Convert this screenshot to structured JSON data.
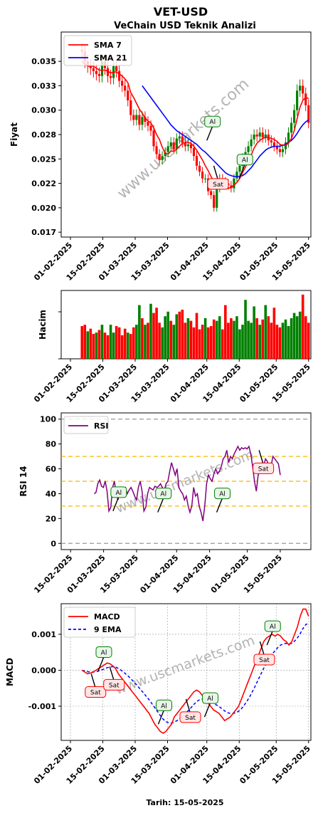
{
  "header": {
    "ticker": "VET-USD",
    "subtitle": "VeChain USD Teknik Analizi"
  },
  "watermark": "www.uscmarkets.com",
  "footer": {
    "date_label": "Tarih: 15-05-2025"
  },
  "colors": {
    "up": "#008000",
    "down": "#ff0000",
    "sma7": "#ff0000",
    "sma21": "#0000ff",
    "rsi": "#800080",
    "macd": "#ff0000",
    "ema": "#0000ff",
    "buy": "#008000",
    "sell": "#ff0000"
  },
  "chart_data": [
    {
      "id": "price",
      "type": "line",
      "ylabel": "Fiyat",
      "ylim": [
        0.0165,
        0.0375
      ],
      "yticks": [
        "0.017",
        "0.020",
        "0.022",
        "0.025",
        "0.028",
        "0.030",
        "0.033",
        "0.035"
      ],
      "ytick_values": [
        0.017,
        0.0195,
        0.022,
        0.0245,
        0.027,
        0.0295,
        0.032,
        0.0345
      ],
      "xlim": [
        -4,
        104
      ],
      "xticks": [
        "01-02-2025",
        "15-02-2025",
        "01-03-2025",
        "15-03-2025",
        "01-04-2025",
        "15-04-2025",
        "01-05-2025",
        "15-05-2025"
      ],
      "xtick_days": [
        0,
        14,
        28,
        42,
        59,
        73,
        89,
        103
      ],
      "first_day": 5,
      "close": [
        0.0355,
        0.0345,
        0.034,
        0.0338,
        0.0335,
        0.0332,
        0.033,
        0.0345,
        0.0338,
        0.033,
        0.0328,
        0.034,
        0.0335,
        0.0325,
        0.032,
        0.0315,
        0.0305,
        0.029,
        0.0285,
        0.029,
        0.028,
        0.0288,
        0.0283,
        0.0279,
        0.0274,
        0.0258,
        0.025,
        0.0244,
        0.0248,
        0.0252,
        0.0258,
        0.0262,
        0.0255,
        0.0266,
        0.0268,
        0.0262,
        0.0258,
        0.026,
        0.0256,
        0.0248,
        0.0238,
        0.0232,
        0.0225,
        0.0225,
        0.0212,
        0.0208,
        0.0195,
        0.0215,
        0.0225,
        0.0222,
        0.022,
        0.0218,
        0.0215,
        0.0225,
        0.0232,
        0.0238,
        0.0246,
        0.0252,
        0.0258,
        0.0265,
        0.027,
        0.0268,
        0.0272,
        0.0267,
        0.027,
        0.0264,
        0.0262,
        0.0258,
        0.0255,
        0.0252,
        0.0255,
        0.0262,
        0.0272,
        0.0282,
        0.0295,
        0.0315,
        0.032,
        0.0312,
        0.03,
        0.0282
      ],
      "sma7": [
        0.0345,
        0.0342,
        0.034,
        0.034,
        0.034,
        0.0338,
        0.0336,
        0.0336,
        0.0336,
        0.0335,
        0.0333,
        0.0334,
        0.0334,
        0.0332,
        0.033,
        0.0327,
        0.0323,
        0.0313,
        0.0308,
        0.0302,
        0.0296,
        0.0292,
        0.0287,
        0.0284,
        0.0282,
        0.0277,
        0.027,
        0.0265,
        0.0257,
        0.0251,
        0.025,
        0.0253,
        0.0253,
        0.0255,
        0.0258,
        0.0261,
        0.0262,
        0.0262,
        0.0261,
        0.0258,
        0.0254,
        0.0249,
        0.0244,
        0.0238,
        0.0233,
        0.0227,
        0.0222,
        0.0216,
        0.0215,
        0.0215,
        0.0215,
        0.0215,
        0.0216,
        0.0218,
        0.0221,
        0.0225,
        0.0231,
        0.0237,
        0.0243,
        0.0249,
        0.0256,
        0.0261,
        0.0264,
        0.0266,
        0.0267,
        0.0267,
        0.0266,
        0.0265,
        0.0263,
        0.026,
        0.0259,
        0.0259,
        0.0261,
        0.0266,
        0.0274,
        0.0286,
        0.0298,
        0.0305,
        0.0308,
        0.0307
      ],
      "sma21": [
        null,
        null,
        null,
        null,
        null,
        null,
        null,
        null,
        null,
        null,
        null,
        null,
        null,
        null,
        null,
        null,
        null,
        null,
        null,
        null,
        null,
        0.032,
        0.0316,
        0.0312,
        0.0308,
        0.0304,
        0.03,
        0.0296,
        0.0292,
        0.0288,
        0.0284,
        0.028,
        0.0277,
        0.0274,
        0.0272,
        0.027,
        0.0268,
        0.0266,
        0.0264,
        0.0262,
        0.026,
        0.0257,
        0.0254,
        0.0252,
        0.0249,
        0.0246,
        0.0243,
        0.024,
        0.0237,
        0.0234,
        0.0231,
        0.0229,
        0.0228,
        0.0227,
        0.0227,
        0.0227,
        0.0228,
        0.023,
        0.0233,
        0.0236,
        0.024,
        0.0244,
        0.0248,
        0.0251,
        0.0254,
        0.0256,
        0.0257,
        0.0258,
        0.0258,
        0.0258,
        0.0259,
        0.026,
        0.0262,
        0.0264,
        0.0267,
        0.0271,
        0.0276,
        0.028,
        0.0283,
        0.0285
      ],
      "legend": [
        {
          "label": "SMA 7",
          "color": "#ff0000"
        },
        {
          "label": "SMA 21",
          "color": "#0000ff"
        }
      ],
      "signals": [
        {
          "label": "Al",
          "kind": "buy",
          "day": 59,
          "value": 0.0264
        },
        {
          "label": "Sat",
          "kind": "sell",
          "day": 62,
          "value": 0.0238
        },
        {
          "label": "Al",
          "kind": "buy",
          "day": 73,
          "value": 0.0225
        }
      ]
    },
    {
      "id": "volume",
      "type": "bar",
      "ylabel": "Hacim",
      "vmax": 1.0,
      "volumes": [
        0.5,
        0.52,
        0.42,
        0.46,
        0.38,
        0.4,
        0.44,
        0.52,
        0.4,
        0.36,
        0.52,
        0.4,
        0.5,
        0.48,
        0.36,
        0.46,
        0.4,
        0.38,
        0.48,
        0.52,
        0.82,
        0.62,
        0.52,
        0.55,
        0.84,
        0.7,
        0.78,
        0.55,
        0.48,
        0.65,
        0.72,
        0.58,
        0.52,
        0.68,
        0.72,
        0.75,
        0.55,
        0.62,
        0.58,
        0.48,
        0.7,
        0.45,
        0.52,
        0.62,
        0.48,
        0.5,
        0.6,
        0.58,
        0.65,
        0.45,
        0.82,
        0.55,
        0.62,
        0.58,
        0.65,
        0.45,
        0.52,
        0.9,
        0.58,
        0.55,
        0.8,
        0.62,
        0.52,
        0.6,
        0.82,
        0.65,
        0.55,
        0.78,
        0.52,
        0.48,
        0.55,
        0.6,
        0.5,
        0.62,
        0.7,
        0.65,
        0.72,
        0.98,
        0.65,
        0.55
      ],
      "up": [
        0,
        0,
        1,
        0,
        0,
        1,
        0,
        1,
        0,
        0,
        1,
        1,
        0,
        0,
        0,
        0,
        1,
        0,
        0,
        1,
        1,
        0,
        1,
        0,
        1,
        0,
        0,
        0,
        1,
        1,
        1,
        0,
        1,
        1,
        0,
        0,
        0,
        1,
        0,
        0,
        0,
        0,
        0,
        1,
        0,
        0,
        0,
        1,
        1,
        0,
        0,
        0,
        0,
        1,
        1,
        1,
        1,
        1,
        1,
        1,
        1,
        0,
        1,
        0,
        1,
        0,
        0,
        0,
        0,
        0,
        1,
        1,
        1,
        1,
        1,
        1,
        1,
        0,
        0,
        0
      ]
    },
    {
      "id": "rsi",
      "type": "line",
      "ylabel": "RSI 14",
      "ylim": [
        -5,
        105
      ],
      "yticks": [
        "0",
        "20",
        "40",
        "60",
        "80",
        "100"
      ],
      "ytick_values": [
        0,
        20,
        40,
        60,
        80,
        100
      ],
      "xlim": [
        10,
        116
      ],
      "xticks": [
        "15-02-2025",
        "01-03-2025",
        "15-03-2025",
        "01-04-2025",
        "15-04-2025",
        "01-05-2025",
        "15-05-2025"
      ],
      "xtick_days": [
        14,
        28,
        42,
        59,
        73,
        89,
        103
      ],
      "first_day": 24,
      "levels": [
        {
          "value": 70,
          "color": "#f5b800"
        },
        {
          "value": 50,
          "color": "#f5b800"
        },
        {
          "value": 30,
          "color": "#f5b800"
        },
        {
          "value": 100,
          "color": "#999999"
        },
        {
          "value": 0,
          "color": "#999999"
        }
      ],
      "rsi": [
        40,
        41,
        48,
        51,
        46,
        45,
        50,
        42,
        26,
        29,
        45,
        50,
        40,
        35,
        45,
        38,
        44,
        45,
        40,
        43,
        45,
        42,
        38,
        35,
        45,
        50,
        42,
        26,
        29,
        40,
        45,
        44,
        43,
        46,
        45,
        46,
        48,
        45,
        42,
        48,
        50,
        58,
        65,
        60,
        55,
        60,
        45,
        42,
        40,
        35,
        38,
        30,
        25,
        30,
        45,
        38,
        40,
        30,
        25,
        18,
        30,
        48,
        55,
        52,
        50,
        56,
        60,
        56,
        58,
        62,
        68,
        70,
        75,
        65,
        70,
        68,
        72,
        75,
        78,
        75,
        77,
        76,
        77,
        76,
        78,
        72,
        62,
        50,
        42,
        55,
        58,
        60,
        62,
        68,
        66,
        60,
        62,
        70,
        68,
        66,
        64,
        55
      ],
      "legend": [
        {
          "label": "RSI",
          "color": "#800080"
        }
      ],
      "signals": [
        {
          "label": "Al",
          "kind": "buy",
          "day": 32,
          "value": 26
        },
        {
          "label": "Al",
          "kind": "buy",
          "day": 51,
          "value": 25
        },
        {
          "label": "Al",
          "kind": "buy",
          "day": 76,
          "value": 25
        },
        {
          "label": "Sat",
          "kind": "sell",
          "day": 94,
          "value": 75
        }
      ]
    },
    {
      "id": "macd",
      "type": "line",
      "ylabel": "MACD",
      "ylim": [
        -0.00195,
        0.00185
      ],
      "yticks": [
        "-0.001",
        "0.000",
        "0.001"
      ],
      "ytick_values": [
        -0.001,
        0,
        0.001
      ],
      "xlim": [
        -4,
        104
      ],
      "xticks": [
        "01-02-2025",
        "15-02-2025",
        "01-03-2025",
        "15-03-2025",
        "01-04-2025",
        "15-04-2025",
        "01-05-2025",
        "15-05-2025"
      ],
      "xtick_days": [
        0,
        14,
        28,
        42,
        59,
        73,
        89,
        103
      ],
      "first_day": 5,
      "macd": [
        0.0,
        -5e-05,
        -0.0001,
        -8e-05,
        -5e-05,
        0.0,
        5e-05,
        0.0001,
        0.00015,
        0.0002,
        0.00018,
        0.00012,
        5e-05,
        -0.0001,
        -0.0002,
        -0.0003,
        -0.0004,
        -0.0005,
        -0.0006,
        -0.0007,
        -0.0008,
        -0.0009,
        -0.001,
        -0.0011,
        -0.0012,
        -0.00135,
        -0.0015,
        -0.0016,
        -0.0017,
        -0.00175,
        -0.0017,
        -0.0016,
        -0.0015,
        -0.0013,
        -0.0012,
        -0.0011,
        -0.001,
        -0.0009,
        -0.0008,
        -0.0007,
        -0.0006,
        -0.00055,
        -0.0006,
        -0.0007,
        -0.0008,
        -0.0009,
        -0.001,
        -0.0011,
        -0.00115,
        -0.0012,
        -0.0013,
        -0.0014,
        -0.00135,
        -0.0013,
        -0.0012,
        -0.0011,
        -0.001,
        -0.0008,
        -0.0006,
        -0.0004,
        -0.0002,
        0.0,
        0.0002,
        0.0004,
        0.0006,
        0.0008,
        0.0009,
        0.00095,
        0.001,
        0.00095,
        0.001,
        0.00095,
        0.00085,
        0.0008,
        0.0007,
        0.0008,
        0.001,
        0.0012,
        0.0015,
        0.0017,
        0.0017,
        0.0015
      ],
      "ema": [
        0.0,
        -2e-05,
        -4e-05,
        -5e-05,
        -5e-05,
        -4e-05,
        -2e-05,
        1e-05,
        4e-05,
        7e-05,
        9e-05,
        0.0001,
        9e-05,
        5e-05,
        0.0,
        -6e-05,
        -0.00013,
        -0.0002,
        -0.00028,
        -0.00036,
        -0.00045,
        -0.00054,
        -0.00063,
        -0.00073,
        -0.00082,
        -0.00093,
        -0.00104,
        -0.00115,
        -0.00126,
        -0.00136,
        -0.00143,
        -0.00146,
        -0.00147,
        -0.00144,
        -0.0014,
        -0.00134,
        -0.00127,
        -0.0012,
        -0.00112,
        -0.00104,
        -0.00095,
        -0.00087,
        -0.00082,
        -0.0008,
        -0.0008,
        -0.00082,
        -0.00086,
        -0.00091,
        -0.00096,
        -0.00101,
        -0.00107,
        -0.00113,
        -0.00118,
        -0.0012,
        -0.0012,
        -0.00118,
        -0.00114,
        -0.00107,
        -0.00097,
        -0.00086,
        -0.00073,
        -0.00058,
        -0.00043,
        -0.00026,
        -0.0001,
        6e-05,
        0.0002,
        0.00033,
        0.00045,
        0.00054,
        0.00063,
        0.0007,
        0.00073,
        0.00075,
        0.00074,
        0.00075,
        0.00081,
        0.0009,
        0.00102,
        0.00116,
        0.00127,
        0.00131
      ],
      "legend": [
        {
          "label": "MACD",
          "color": "#ff0000",
          "dash": false
        },
        {
          "label": "9 EMA",
          "color": "#0000ff",
          "dash": true
        }
      ],
      "signals": [
        {
          "label": "Sat",
          "kind": "sell",
          "day": 9,
          "value": -0.0001
        },
        {
          "label": "Al",
          "kind": "buy",
          "day": 12,
          "value": -2e-05
        },
        {
          "label": "Sat",
          "kind": "sell",
          "day": 17,
          "value": 0.0001
        },
        {
          "label": "Al",
          "kind": "buy",
          "day": 38,
          "value": -0.0015
        },
        {
          "label": "Sat",
          "kind": "sell",
          "day": 50,
          "value": -0.0008
        },
        {
          "label": "Al",
          "kind": "buy",
          "day": 58,
          "value": -0.0013
        },
        {
          "label": "Sat",
          "kind": "sell",
          "day": 82,
          "value": 0.0008
        },
        {
          "label": "Al",
          "kind": "buy",
          "day": 85,
          "value": 0.0007
        }
      ]
    }
  ]
}
